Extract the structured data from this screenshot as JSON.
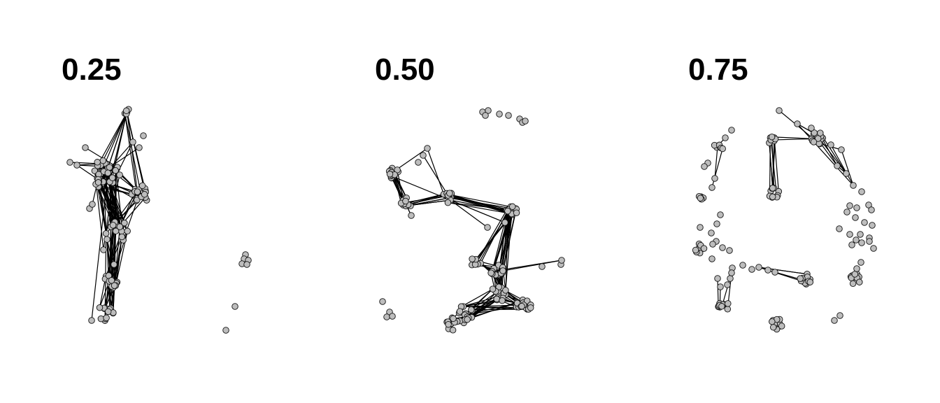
{
  "panels": [
    {
      "id": "p1",
      "title": "0.25"
    },
    {
      "id": "p2",
      "title": "0.50"
    },
    {
      "id": "p3",
      "title": "0.75"
    }
  ],
  "colors": {
    "node_fill": "#bdbdbd",
    "node_stroke": "#111111",
    "edge": "#000000"
  }
}
